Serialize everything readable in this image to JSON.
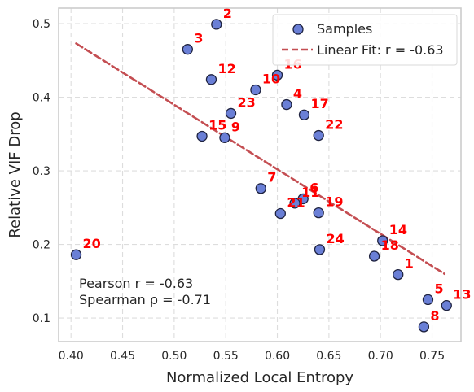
{
  "chart_data": {
    "type": "scatter",
    "xlabel": "Normalized Local Entropy",
    "ylabel": "Relative VIF Drop",
    "xlim": [
      0.388,
      0.778
    ],
    "ylim": [
      0.068,
      0.521
    ],
    "xticks": [
      "0.40",
      "0.45",
      "0.50",
      "0.55",
      "0.60",
      "0.65",
      "0.70",
      "0.75"
    ],
    "yticks": [
      "0.1",
      "0.2",
      "0.3",
      "0.4",
      "0.5"
    ],
    "grid": true,
    "legend_position": "top-right",
    "legend": [
      {
        "label": "Samples",
        "kind": "marker"
      },
      {
        "label": "Linear Fit: r = -0.63",
        "kind": "line"
      }
    ],
    "series": [
      {
        "name": "Samples",
        "color": "#6a7fd6",
        "edge_color": "#1f2340",
        "points": [
          {
            "id": "1",
            "x": 0.717,
            "y": 0.159
          },
          {
            "id": "2",
            "x": 0.541,
            "y": 0.499
          },
          {
            "id": "3",
            "x": 0.513,
            "y": 0.465
          },
          {
            "id": "4",
            "x": 0.609,
            "y": 0.39
          },
          {
            "id": "5",
            "x": 0.746,
            "y": 0.125
          },
          {
            "id": "6",
            "x": 0.625,
            "y": 0.262
          },
          {
            "id": "7",
            "x": 0.584,
            "y": 0.276
          },
          {
            "id": "8",
            "x": 0.742,
            "y": 0.088
          },
          {
            "id": "9",
            "x": 0.549,
            "y": 0.345
          },
          {
            "id": "10",
            "x": 0.579,
            "y": 0.41
          },
          {
            "id": "11",
            "x": 0.617,
            "y": 0.256
          },
          {
            "id": "12",
            "x": 0.536,
            "y": 0.424
          },
          {
            "id": "13",
            "x": 0.764,
            "y": 0.117
          },
          {
            "id": "14",
            "x": 0.702,
            "y": 0.205
          },
          {
            "id": "15",
            "x": 0.527,
            "y": 0.347
          },
          {
            "id": "16",
            "x": 0.6,
            "y": 0.43
          },
          {
            "id": "17",
            "x": 0.626,
            "y": 0.376
          },
          {
            "id": "18",
            "x": 0.694,
            "y": 0.184
          },
          {
            "id": "19",
            "x": 0.64,
            "y": 0.243
          },
          {
            "id": "20",
            "x": 0.405,
            "y": 0.186
          },
          {
            "id": "21",
            "x": 0.603,
            "y": 0.242
          },
          {
            "id": "22",
            "x": 0.64,
            "y": 0.348
          },
          {
            "id": "23",
            "x": 0.555,
            "y": 0.378
          },
          {
            "id": "24",
            "x": 0.641,
            "y": 0.193
          }
        ]
      },
      {
        "name": "Linear Fit: r = -0.63",
        "type": "line",
        "color": "#c44e52",
        "dashed": true,
        "points": [
          {
            "x": 0.405,
            "y": 0.473
          },
          {
            "x": 0.762,
            "y": 0.16
          }
        ]
      }
    ],
    "annotations": [
      "Pearson r = -0.63",
      "Spearman ρ = -0.71"
    ],
    "label_color": "#ff0000"
  }
}
